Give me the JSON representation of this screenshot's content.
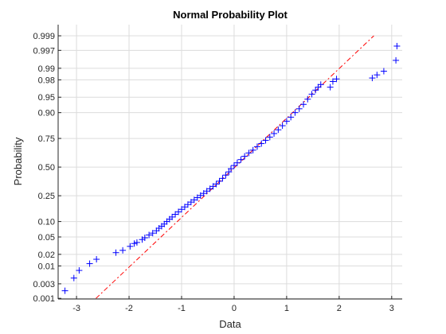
{
  "chart_data": {
    "type": "scatter",
    "title": "Normal Probability Plot",
    "xlabel": "Data",
    "ylabel": "Probability",
    "xlim": [
      -3.35,
      3.2
    ],
    "ylim_probability": [
      0.001,
      0.999
    ],
    "y_scale": "normal-probability",
    "grid": true,
    "x_ticks": [
      -3,
      -2,
      -1,
      0,
      1,
      2,
      3
    ],
    "x_tick_labels": [
      "-3",
      "-2",
      "-1",
      "0",
      "1",
      "2",
      "3"
    ],
    "y_ticks": [
      0.001,
      0.003,
      0.01,
      0.02,
      0.05,
      0.1,
      0.25,
      0.5,
      0.75,
      0.9,
      0.95,
      0.98,
      0.99,
      0.997,
      0.999
    ],
    "y_tick_labels": [
      "0.001",
      "0.003",
      "0.01",
      "0.02",
      "0.05",
      "0.10",
      "0.25",
      "0.50",
      "0.75",
      "0.90",
      "0.95",
      "0.98",
      "0.99",
      "0.997",
      "0.999"
    ],
    "colors": {
      "points": "#0000ff",
      "reference_line": "#ff0000"
    },
    "reference_line": {
      "style": "dash-dot",
      "points": [
        [
          -2.63,
          0.001
        ],
        [
          2.66,
          0.999
        ]
      ]
    },
    "series": [
      {
        "marker": "+",
        "points": [
          [
            -3.22,
            0.0018
          ],
          [
            -3.05,
            0.0045
          ],
          [
            -2.95,
            0.0075
          ],
          [
            -2.75,
            0.0115
          ],
          [
            -2.62,
            0.015
          ],
          [
            -2.25,
            0.022
          ],
          [
            -2.12,
            0.025
          ],
          [
            -1.98,
            0.031
          ],
          [
            -1.9,
            0.036
          ],
          [
            -1.85,
            0.038
          ],
          [
            -1.75,
            0.044
          ],
          [
            -1.7,
            0.048
          ],
          [
            -1.62,
            0.055
          ],
          [
            -1.55,
            0.06
          ],
          [
            -1.48,
            0.067
          ],
          [
            -1.43,
            0.075
          ],
          [
            -1.38,
            0.082
          ],
          [
            -1.33,
            0.09
          ],
          [
            -1.28,
            0.1
          ],
          [
            -1.23,
            0.11
          ],
          [
            -1.18,
            0.12
          ],
          [
            -1.12,
            0.133
          ],
          [
            -1.06,
            0.146
          ],
          [
            -1.0,
            0.16
          ],
          [
            -0.94,
            0.174
          ],
          [
            -0.88,
            0.189
          ],
          [
            -0.82,
            0.205
          ],
          [
            -0.76,
            0.22
          ],
          [
            -0.7,
            0.236
          ],
          [
            -0.64,
            0.252
          ],
          [
            -0.58,
            0.268
          ],
          [
            -0.52,
            0.286
          ],
          [
            -0.46,
            0.305
          ],
          [
            -0.4,
            0.325
          ],
          [
            -0.34,
            0.345
          ],
          [
            -0.28,
            0.37
          ],
          [
            -0.22,
            0.395
          ],
          [
            -0.16,
            0.425
          ],
          [
            -0.1,
            0.455
          ],
          [
            -0.06,
            0.485
          ],
          [
            0.0,
            0.515
          ],
          [
            0.06,
            0.54
          ],
          [
            0.13,
            0.57
          ],
          [
            0.2,
            0.6
          ],
          [
            0.28,
            0.63
          ],
          [
            0.36,
            0.655
          ],
          [
            0.44,
            0.685
          ],
          [
            0.52,
            0.71
          ],
          [
            0.6,
            0.735
          ],
          [
            0.68,
            0.76
          ],
          [
            0.76,
            0.785
          ],
          [
            0.84,
            0.81
          ],
          [
            0.92,
            0.835
          ],
          [
            1.0,
            0.86
          ],
          [
            1.08,
            0.88
          ],
          [
            1.16,
            0.9
          ],
          [
            1.24,
            0.915
          ],
          [
            1.32,
            0.93
          ],
          [
            1.4,
            0.945
          ],
          [
            1.48,
            0.957
          ],
          [
            1.55,
            0.965
          ],
          [
            1.6,
            0.97
          ],
          [
            1.65,
            0.974
          ],
          [
            1.83,
            0.97
          ],
          [
            1.88,
            0.978
          ],
          [
            1.95,
            0.981
          ],
          [
            2.63,
            0.982
          ],
          [
            2.72,
            0.985
          ],
          [
            2.85,
            0.988
          ],
          [
            3.08,
            0.994
          ],
          [
            3.1,
            0.9978
          ]
        ]
      }
    ]
  }
}
